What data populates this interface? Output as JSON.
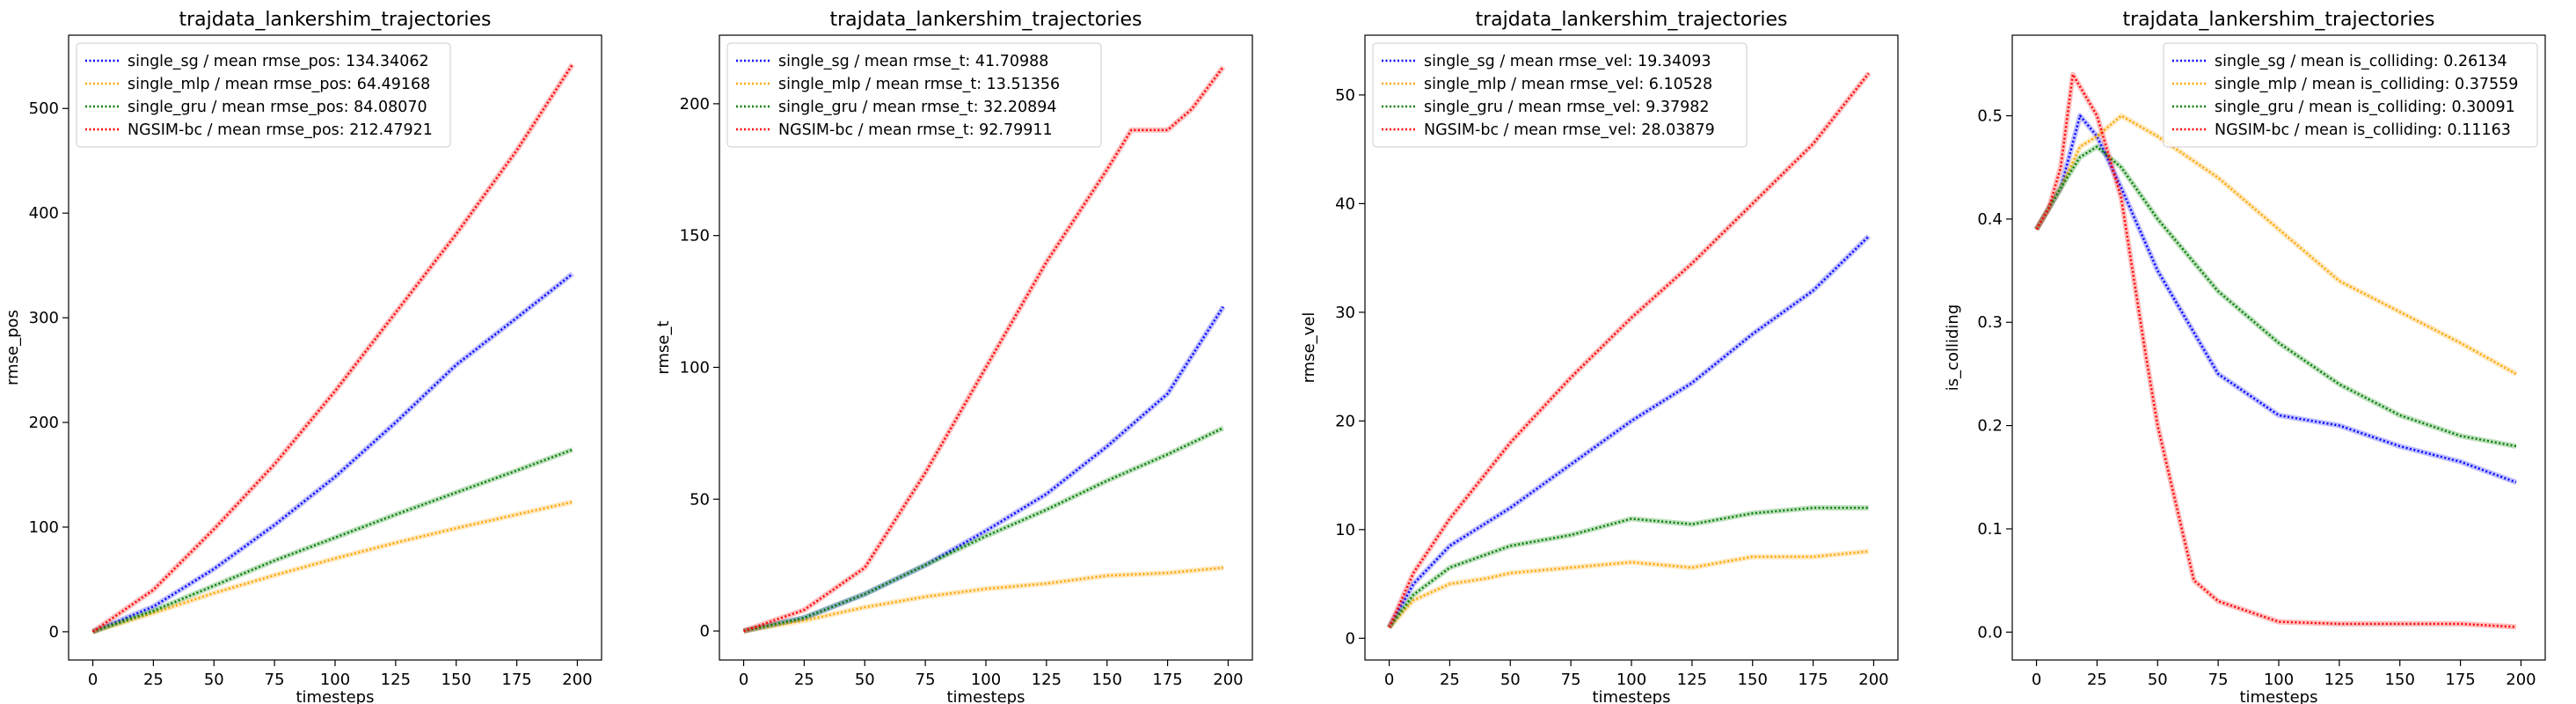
{
  "figure": {
    "background": "#ffffff"
  },
  "chart_data": [
    {
      "type": "line",
      "title": "trajdata_lankershim_trajectories",
      "xlabel": "timesteps",
      "ylabel": "rmse_pos",
      "xlim": [
        -10,
        210
      ],
      "ylim": [
        -27,
        570
      ],
      "xticks": [
        0,
        25,
        50,
        75,
        100,
        125,
        150,
        175,
        200
      ],
      "yticks": [
        0,
        100,
        200,
        300,
        400,
        500
      ],
      "legend_position": "upper-left",
      "line_style": "dotted",
      "series": [
        {
          "name": "single_sg / mean rmse_pos: 134.34062",
          "color": "#0000ff",
          "x": [
            0,
            25,
            50,
            75,
            100,
            125,
            150,
            175,
            198
          ],
          "y": [
            0,
            24,
            60,
            102,
            148,
            200,
            255,
            300,
            342
          ]
        },
        {
          "name": "single_mlp / mean rmse_pos: 64.49168",
          "color": "#ffa500",
          "x": [
            0,
            25,
            50,
            75,
            100,
            125,
            150,
            175,
            198
          ],
          "y": [
            0,
            18,
            37,
            54,
            70,
            85,
            99,
            112,
            124
          ]
        },
        {
          "name": "single_gru / mean rmse_pos: 84.08070",
          "color": "#008000",
          "x": [
            0,
            25,
            50,
            75,
            100,
            125,
            150,
            175,
            198
          ],
          "y": [
            0,
            20,
            44,
            68,
            90,
            112,
            133,
            154,
            174
          ]
        },
        {
          "name": "NGSIM-bc / mean rmse_pos: 212.47921",
          "color": "#ff0000",
          "x": [
            0,
            25,
            50,
            75,
            100,
            125,
            150,
            175,
            198
          ],
          "y": [
            0,
            40,
            98,
            160,
            230,
            305,
            380,
            460,
            542
          ]
        }
      ]
    },
    {
      "type": "line",
      "title": "trajdata_lankershim_trajectories",
      "xlabel": "timesteps",
      "ylabel": "rmse_t",
      "xlim": [
        -10,
        210
      ],
      "ylim": [
        -11,
        226
      ],
      "xticks": [
        0,
        25,
        50,
        75,
        100,
        125,
        150,
        175,
        200
      ],
      "yticks": [
        0,
        50,
        100,
        150,
        200
      ],
      "legend_position": "upper-left",
      "line_style": "dotted",
      "series": [
        {
          "name": "single_sg / mean rmse_t: 41.70988",
          "color": "#0000ff",
          "x": [
            0,
            25,
            50,
            75,
            100,
            125,
            150,
            175,
            198
          ],
          "y": [
            0,
            5,
            14,
            25,
            38,
            52,
            70,
            90,
            123
          ]
        },
        {
          "name": "single_mlp / mean rmse_t: 13.51356",
          "color": "#ffa500",
          "x": [
            0,
            25,
            50,
            75,
            100,
            125,
            150,
            175,
            198
          ],
          "y": [
            0,
            4,
            9,
            13,
            16,
            18,
            21,
            22,
            24
          ]
        },
        {
          "name": "single_gru / mean rmse_t: 32.20894",
          "color": "#008000",
          "x": [
            0,
            25,
            50,
            75,
            100,
            125,
            150,
            175,
            198
          ],
          "y": [
            0,
            5,
            14,
            25,
            36,
            46,
            57,
            67,
            77
          ]
        },
        {
          "name": "NGSIM-bc / mean rmse_t: 92.79911",
          "color": "#ff0000",
          "x": [
            0,
            25,
            50,
            75,
            100,
            125,
            150,
            160,
            175,
            185,
            198
          ],
          "y": [
            0,
            8,
            24,
            60,
            100,
            140,
            175,
            190,
            190,
            198,
            214
          ]
        }
      ]
    },
    {
      "type": "line",
      "title": "trajdata_lankershim_trajectories",
      "xlabel": "timesteps",
      "ylabel": "rmse_vel",
      "xlim": [
        -10,
        210
      ],
      "ylim": [
        -2,
        55.5
      ],
      "xticks": [
        0,
        25,
        50,
        75,
        100,
        125,
        150,
        175,
        200
      ],
      "yticks": [
        0,
        10,
        20,
        30,
        40,
        50
      ],
      "legend_position": "upper-left",
      "line_style": "dotted",
      "series": [
        {
          "name": "single_sg / mean rmse_vel: 19.34093",
          "color": "#0000ff",
          "x": [
            0,
            10,
            25,
            50,
            75,
            100,
            125,
            150,
            175,
            198
          ],
          "y": [
            1,
            5,
            8.5,
            12,
            16,
            20,
            23.5,
            28,
            32,
            37
          ]
        },
        {
          "name": "single_mlp / mean rmse_vel: 6.10528",
          "color": "#ffa500",
          "x": [
            0,
            10,
            25,
            40,
            50,
            75,
            100,
            125,
            150,
            175,
            198
          ],
          "y": [
            1,
            3.5,
            5,
            5.5,
            6,
            6.5,
            7,
            6.5,
            7.5,
            7.5,
            8
          ]
        },
        {
          "name": "single_gru / mean rmse_vel: 9.37982",
          "color": "#008000",
          "x": [
            0,
            10,
            25,
            50,
            75,
            100,
            125,
            150,
            175,
            198
          ],
          "y": [
            1,
            4,
            6.5,
            8.5,
            9.5,
            11,
            10.5,
            11.5,
            12,
            12
          ]
        },
        {
          "name": "NGSIM-bc / mean rmse_vel: 28.03879",
          "color": "#ff0000",
          "x": [
            0,
            10,
            25,
            50,
            75,
            100,
            125,
            150,
            175,
            198
          ],
          "y": [
            1,
            6,
            11,
            18,
            24,
            29.5,
            34.5,
            40,
            45.5,
            52
          ]
        }
      ]
    },
    {
      "type": "line",
      "title": "trajdata_lankershim_trajectories",
      "xlabel": "timesteps",
      "ylabel": "is_colliding",
      "xlim": [
        -10,
        210
      ],
      "ylim": [
        -0.027,
        0.578
      ],
      "xticks": [
        0,
        25,
        50,
        75,
        100,
        125,
        150,
        175,
        200
      ],
      "yticks": [
        0.0,
        0.1,
        0.2,
        0.3,
        0.4,
        0.5
      ],
      "legend_position": "upper-right",
      "line_style": "dotted",
      "series": [
        {
          "name": "single_sg / mean is_colliding: 0.26134",
          "color": "#0000ff",
          "x": [
            0,
            5,
            10,
            18,
            25,
            35,
            50,
            65,
            75,
            100,
            125,
            150,
            175,
            198
          ],
          "y": [
            0.39,
            0.41,
            0.43,
            0.5,
            0.48,
            0.43,
            0.35,
            0.29,
            0.25,
            0.21,
            0.2,
            0.18,
            0.165,
            0.145
          ]
        },
        {
          "name": "single_mlp / mean is_colliding: 0.37559",
          "color": "#ffa500",
          "x": [
            0,
            5,
            10,
            18,
            25,
            35,
            50,
            75,
            100,
            125,
            150,
            175,
            198
          ],
          "y": [
            0.39,
            0.41,
            0.43,
            0.47,
            0.48,
            0.5,
            0.48,
            0.44,
            0.39,
            0.34,
            0.31,
            0.28,
            0.25
          ]
        },
        {
          "name": "single_gru / mean is_colliding: 0.30091",
          "color": "#008000",
          "x": [
            0,
            5,
            10,
            18,
            25,
            35,
            50,
            75,
            100,
            125,
            150,
            175,
            198
          ],
          "y": [
            0.39,
            0.41,
            0.43,
            0.46,
            0.47,
            0.45,
            0.4,
            0.33,
            0.28,
            0.24,
            0.21,
            0.19,
            0.18
          ]
        },
        {
          "name": "NGSIM-bc / mean is_colliding: 0.11163",
          "color": "#ff0000",
          "x": [
            0,
            5,
            10,
            15,
            25,
            35,
            45,
            50,
            60,
            65,
            75,
            100,
            125,
            150,
            175,
            198
          ],
          "y": [
            0.39,
            0.41,
            0.45,
            0.54,
            0.5,
            0.42,
            0.27,
            0.2,
            0.1,
            0.05,
            0.03,
            0.01,
            0.008,
            0.008,
            0.008,
            0.005
          ]
        }
      ]
    }
  ]
}
